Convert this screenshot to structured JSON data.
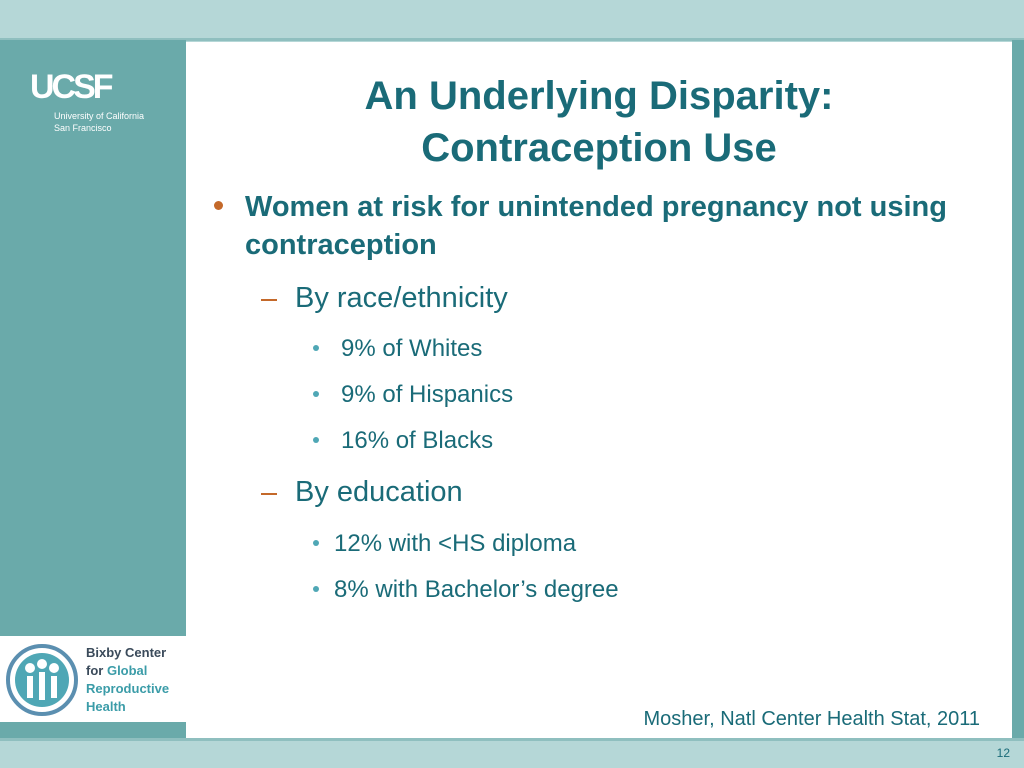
{
  "logo": {
    "mark": "UCSF",
    "line1": "University of California",
    "line2": "San Francisco"
  },
  "center_logo": {
    "line1": "Bixby Center",
    "line2_prefix": "for ",
    "line2_accent": "Global",
    "line3": "Reproductive",
    "line4": "Health"
  },
  "slide": {
    "title": [
      "An Underlying Disparity:",
      "Contraception Use"
    ],
    "main_bullet": "Women at risk for unintended pregnancy not using contraception",
    "groups": [
      {
        "heading": "By race/ethnicity",
        "items": [
          "9% of Whites",
          "9% of Hispanics",
          "16% of Blacks"
        ]
      },
      {
        "heading": "By education",
        "items": [
          "12% with <HS diploma",
          "8% with Bachelor’s degree"
        ]
      }
    ],
    "citation": "Mosher, Natl Center Health Stat, 2011",
    "page_number": "12"
  }
}
